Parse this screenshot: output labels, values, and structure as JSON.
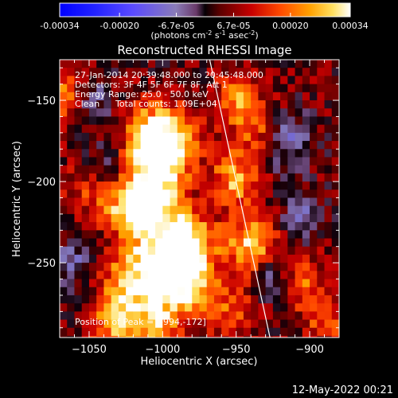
{
  "footer_timestamp": "12-May-2022 00:21",
  "colorbar": {
    "tick_labels": [
      "-0.00034",
      "-0.00020",
      "-6.7e-05",
      "6.7e-05",
      "0.00020",
      "0.00034"
    ],
    "tick_values": [
      -0.00034,
      -0.0002,
      -6.7e-05,
      6.7e-05,
      0.0002,
      0.00034
    ],
    "range": [
      -0.00034,
      0.00034
    ],
    "units_text": "(photons cm",
    "units_sup1": "-2",
    "units_mid": " s",
    "units_sup2": "-1",
    "units_tail": " asec",
    "units_sup3": "-2",
    "units_end": ")"
  },
  "chart_data": {
    "type": "heatmap",
    "title": "Reconstructed RHESSI Image",
    "xlabel": "Heliocentric X (arcsec)",
    "ylabel": "Heliocentric Y (arcsec)",
    "xlim": [
      -1070,
      -880
    ],
    "ylim": [
      -296,
      -125
    ],
    "xticks": [
      -1050,
      -1000,
      -950,
      -900
    ],
    "yticks": [
      -150,
      -200,
      -250
    ],
    "xtick_labels": [
      "−1050",
      "−1000",
      "−950",
      "−900"
    ],
    "ytick_labels": [
      "−150",
      "−200",
      "−250"
    ],
    "annotations": [
      "27-Jan-2014 20:39:48.000 to 20:45:48.000",
      "Detectors: 3F 4F 5F 6F 7F 8F, Att 1",
      "Energy Range: 25.0 - 50.0 keV",
      "Clean",
      "Total counts: 1.09E+04"
    ],
    "peak_label": "Position of Peak = [-994,-172]",
    "peak_position": [
      -994,
      -172
    ],
    "limb_line": [
      [
        -968,
        -125
      ],
      [
        -927,
        -296
      ]
    ],
    "sources": [
      {
        "x": -1003,
        "y": -173,
        "amp": 0.95,
        "w": 14
      },
      {
        "x": -1000,
        "y": -190,
        "amp": 0.6,
        "w": 16
      },
      {
        "x": -1010,
        "y": -213,
        "amp": 0.75,
        "w": 13
      },
      {
        "x": -985,
        "y": -237,
        "amp": 0.8,
        "w": 14
      },
      {
        "x": -1000,
        "y": -252,
        "amp": 0.75,
        "w": 14
      },
      {
        "x": -985,
        "y": -262,
        "amp": 0.65,
        "w": 14
      },
      {
        "x": -1030,
        "y": -225,
        "amp": 0.55,
        "w": 14
      },
      {
        "x": -1025,
        "y": -265,
        "amp": 0.6,
        "w": 14
      },
      {
        "x": -1035,
        "y": -290,
        "amp": 0.45,
        "w": 12
      },
      {
        "x": -1005,
        "y": -290,
        "amp": 0.55,
        "w": 14
      },
      {
        "x": -952,
        "y": -198,
        "amp": 0.65,
        "w": 12
      },
      {
        "x": -940,
        "y": -238,
        "amp": 0.7,
        "w": 12
      },
      {
        "x": -950,
        "y": -150,
        "amp": 0.55,
        "w": 11
      },
      {
        "x": -935,
        "y": -168,
        "amp": 0.4,
        "w": 10
      },
      {
        "x": -1065,
        "y": -148,
        "amp": 0.55,
        "w": 10
      },
      {
        "x": -905,
        "y": -262,
        "amp": 0.45,
        "w": 11
      },
      {
        "x": -890,
        "y": -285,
        "amp": 0.4,
        "w": 10
      },
      {
        "x": -955,
        "y": -280,
        "amp": 0.35,
        "w": 12
      },
      {
        "x": -1050,
        "y": -200,
        "amp": 0.3,
        "w": 12
      },
      {
        "x": -1050,
        "y": -150,
        "amp": -0.4,
        "w": 10
      },
      {
        "x": -1040,
        "y": -190,
        "amp": -0.35,
        "w": 10
      },
      {
        "x": -1058,
        "y": -250,
        "amp": -0.35,
        "w": 12
      },
      {
        "x": -915,
        "y": -175,
        "amp": -0.4,
        "w": 12
      },
      {
        "x": -905,
        "y": -220,
        "amp": -0.35,
        "w": 10
      },
      {
        "x": -1038,
        "y": -233,
        "amp": -0.3,
        "w": 8
      },
      {
        "x": -925,
        "y": -260,
        "amp": -0.35,
        "w": 9
      },
      {
        "x": -970,
        "y": -200,
        "amp": -0.25,
        "w": 8
      }
    ],
    "grid": false
  }
}
